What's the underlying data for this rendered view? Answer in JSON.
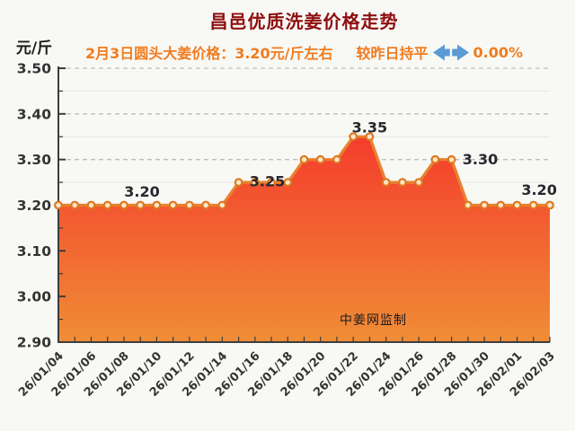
{
  "title": "昌邑优质洗姜价格走势",
  "subtitle": {
    "price_text": "2月3日圆头大姜价格：3.20元/斤左右",
    "trend_text": "较昨日持平",
    "trend_icon": "double-horizontal-arrow-icon",
    "trend_value": "0.00%"
  },
  "y_axis_unit": "元/斤",
  "watermark": "中姜网监制",
  "colors": {
    "background": "#f8f8f5",
    "title": "#8e0e0e",
    "subtitle": "#f07c1f",
    "arrow": "#5b9bd5",
    "axis": "#3c3c3c",
    "tick_label": "#333333",
    "grid_major": "#bdbdbd",
    "grid_minor": "#e9e9e5",
    "line": "#e8822d",
    "marker_stroke": "#de7820",
    "marker_fill": "#fbe6c8",
    "area_top": "#f43a2c",
    "area_bottom": "#f08d36",
    "point_label": "#28282e",
    "watermark": "#1c1c1c"
  },
  "chart_data": {
    "type": "line",
    "title": "昌邑优质洗姜价格走势",
    "ylabel": "元/斤",
    "x": [
      "26/01/04",
      "26/01/05",
      "26/01/06",
      "26/01/07",
      "26/01/08",
      "26/01/09",
      "26/01/10",
      "26/01/11",
      "26/01/12",
      "26/01/13",
      "26/01/14",
      "26/01/15",
      "26/01/16",
      "26/01/17",
      "26/01/18",
      "26/01/19",
      "26/01/20",
      "26/01/21",
      "26/01/22",
      "26/01/23",
      "26/01/24",
      "26/01/25",
      "26/01/26",
      "26/01/27",
      "26/01/28",
      "26/01/29",
      "26/01/30",
      "26/01/31",
      "26/02/01",
      "26/02/02",
      "26/02/03"
    ],
    "values": [
      3.2,
      3.2,
      3.2,
      3.2,
      3.2,
      3.2,
      3.2,
      3.2,
      3.2,
      3.2,
      3.2,
      3.25,
      3.25,
      3.25,
      3.25,
      3.3,
      3.3,
      3.3,
      3.35,
      3.35,
      3.25,
      3.25,
      3.25,
      3.3,
      3.3,
      3.2,
      3.2,
      3.2,
      3.2,
      3.2,
      3.2
    ],
    "x_tick_labels": [
      "26/01/04",
      "26/01/06",
      "26/01/08",
      "26/01/10",
      "26/01/12",
      "26/01/14",
      "26/01/16",
      "26/01/18",
      "26/01/20",
      "26/01/22",
      "26/01/24",
      "26/01/26",
      "26/01/28",
      "26/01/30",
      "26/02/01",
      "26/02/03"
    ],
    "y_ticks": [
      "3.50",
      "3.40",
      "3.30",
      "3.20",
      "3.10",
      "3.00",
      "2.90"
    ],
    "y_minor_ticks": [
      3.45,
      3.35,
      3.25,
      3.15,
      3.05,
      2.95
    ],
    "ylim": [
      2.9,
      3.5
    ],
    "grid": "major-dashed, minor-solid",
    "legend": false,
    "annotations": [
      {
        "text": "3.20",
        "index": 5.1,
        "value": 3.2,
        "dy": -15
      },
      {
        "text": "3.25",
        "index": 12.75,
        "value": 3.25,
        "dy": -1
      },
      {
        "text": "3.35",
        "index": 19.0,
        "value": 3.35,
        "dy": -10
      },
      {
        "text": "3.30",
        "index": 25.75,
        "value": 3.3,
        "dy": 0
      },
      {
        "text": "3.20",
        "index": 29.35,
        "value": 3.2,
        "dy": -17
      }
    ]
  }
}
